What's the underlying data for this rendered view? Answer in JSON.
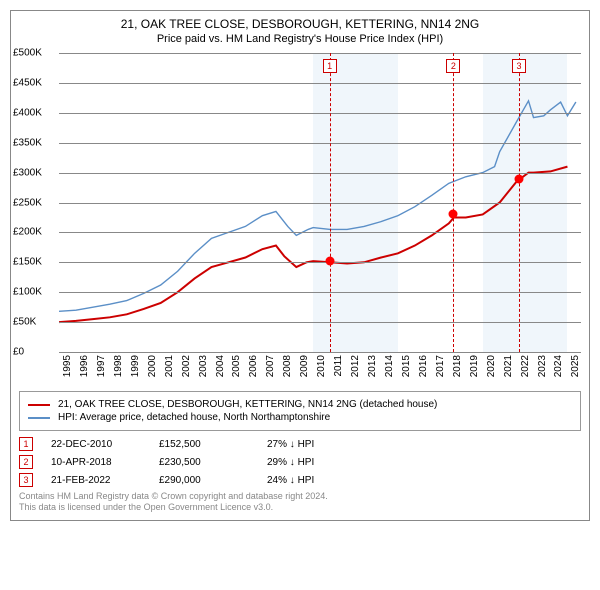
{
  "title": "21, OAK TREE CLOSE, DESBOROUGH, KETTERING, NN14 2NG",
  "subtitle": "Price paid vs. HM Land Registry's House Price Index (HPI)",
  "chart": {
    "type": "line",
    "background_color": "#ffffff",
    "band_color": "#eaf2fa",
    "grid_color": "#888888",
    "ylim": [
      0,
      500000
    ],
    "yticks": [
      0,
      50000,
      100000,
      150000,
      200000,
      250000,
      300000,
      350000,
      400000,
      450000,
      500000
    ],
    "ylabels": [
      "£0",
      "£50K",
      "£100K",
      "£150K",
      "£200K",
      "£250K",
      "£300K",
      "£350K",
      "£400K",
      "£450K",
      "£500K"
    ],
    "x_start": 1995,
    "x_end": 2025.8,
    "xticks": [
      1995,
      1996,
      1997,
      1998,
      1999,
      2000,
      2001,
      2002,
      2003,
      2004,
      2005,
      2006,
      2007,
      2008,
      2009,
      2010,
      2011,
      2012,
      2013,
      2014,
      2015,
      2016,
      2017,
      2018,
      2019,
      2020,
      2021,
      2022,
      2023,
      2024,
      2025
    ],
    "xlabels": [
      "1995",
      "1996",
      "1997",
      "1998",
      "1999",
      "2000",
      "2001",
      "2002",
      "2003",
      "2004",
      "2005",
      "2006",
      "2007",
      "2008",
      "2009",
      "2010",
      "2011",
      "2012",
      "2013",
      "2014",
      "2015",
      "2016",
      "2017",
      "2018",
      "2019",
      "2020",
      "2021",
      "2022",
      "2023",
      "2024",
      "2025"
    ],
    "label_fontsize": 10,
    "series": [
      {
        "name": "21, OAK TREE CLOSE, DESBOROUGH, KETTERING, NN14 2NG (detached house)",
        "color": "#cc0000",
        "width": 2,
        "points": [
          [
            1995,
            50000
          ],
          [
            1996,
            52000
          ],
          [
            1997,
            55000
          ],
          [
            1998,
            58000
          ],
          [
            1999,
            63000
          ],
          [
            2000,
            72000
          ],
          [
            2001,
            82000
          ],
          [
            2002,
            100000
          ],
          [
            2003,
            123000
          ],
          [
            2004,
            142000
          ],
          [
            2005,
            150000
          ],
          [
            2006,
            158000
          ],
          [
            2007,
            172000
          ],
          [
            2007.8,
            178000
          ],
          [
            2008.3,
            160000
          ],
          [
            2009,
            142000
          ],
          [
            2009.6,
            150000
          ],
          [
            2010,
            152000
          ],
          [
            2011,
            150000
          ],
          [
            2012,
            148000
          ],
          [
            2013,
            150000
          ],
          [
            2014,
            158000
          ],
          [
            2015,
            165000
          ],
          [
            2016,
            178000
          ],
          [
            2017,
            195000
          ],
          [
            2018,
            215000
          ],
          [
            2018.3,
            225000
          ],
          [
            2019,
            225000
          ],
          [
            2020,
            230000
          ],
          [
            2021,
            250000
          ],
          [
            2022,
            285000
          ],
          [
            2022.7,
            300000
          ],
          [
            2023,
            300000
          ],
          [
            2024,
            302000
          ],
          [
            2025,
            310000
          ]
        ]
      },
      {
        "name": "HPI: Average price, detached house, North Northamptonshire",
        "color": "#5b8fc7",
        "width": 1.4,
        "points": [
          [
            1995,
            68000
          ],
          [
            1996,
            70000
          ],
          [
            1997,
            75000
          ],
          [
            1998,
            80000
          ],
          [
            1999,
            86000
          ],
          [
            2000,
            98000
          ],
          [
            2001,
            112000
          ],
          [
            2002,
            135000
          ],
          [
            2003,
            165000
          ],
          [
            2004,
            190000
          ],
          [
            2005,
            200000
          ],
          [
            2006,
            210000
          ],
          [
            2007,
            228000
          ],
          [
            2007.8,
            235000
          ],
          [
            2008.5,
            210000
          ],
          [
            2009,
            195000
          ],
          [
            2009.7,
            205000
          ],
          [
            2010,
            208000
          ],
          [
            2011,
            205000
          ],
          [
            2012,
            205000
          ],
          [
            2013,
            210000
          ],
          [
            2014,
            218000
          ],
          [
            2015,
            228000
          ],
          [
            2016,
            243000
          ],
          [
            2017,
            262000
          ],
          [
            2018,
            282000
          ],
          [
            2019,
            293000
          ],
          [
            2020,
            300000
          ],
          [
            2020.7,
            310000
          ],
          [
            2021,
            335000
          ],
          [
            2022,
            385000
          ],
          [
            2022.7,
            420000
          ],
          [
            2023,
            392000
          ],
          [
            2023.6,
            395000
          ],
          [
            2024,
            405000
          ],
          [
            2024.6,
            418000
          ],
          [
            2025,
            395000
          ],
          [
            2025.5,
            418000
          ]
        ]
      }
    ],
    "markers": [
      {
        "label": "1",
        "x": 2010.97,
        "y": 152500
      },
      {
        "label": "2",
        "x": 2018.27,
        "y": 230500
      },
      {
        "label": "3",
        "x": 2022.14,
        "y": 290000
      }
    ]
  },
  "legend": [
    {
      "color": "#cc0000",
      "text": "21, OAK TREE CLOSE, DESBOROUGH, KETTERING, NN14 2NG (detached house)"
    },
    {
      "color": "#5b8fc7",
      "text": "HPI: Average price, detached house, North Northamptonshire"
    }
  ],
  "sales": [
    {
      "label": "1",
      "date": "22-DEC-2010",
      "price": "£152,500",
      "delta": "27% ↓ HPI"
    },
    {
      "label": "2",
      "date": "10-APR-2018",
      "price": "£230,500",
      "delta": "29% ↓ HPI"
    },
    {
      "label": "3",
      "date": "21-FEB-2022",
      "price": "£290,000",
      "delta": "24% ↓ HPI"
    }
  ],
  "footer": [
    "Contains HM Land Registry data © Crown copyright and database right 2024.",
    "This data is licensed under the Open Government Licence v3.0."
  ]
}
